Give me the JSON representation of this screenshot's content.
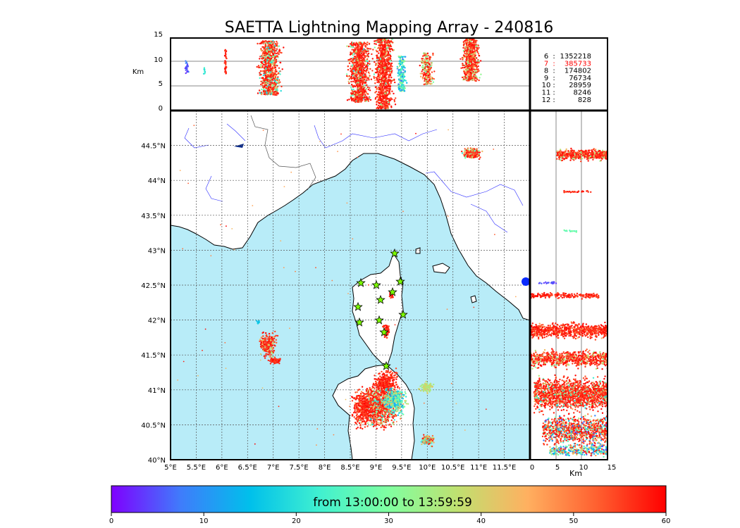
{
  "title": "SAETTA Lightning Mapping Array - 240816",
  "altitude_panel": {
    "unit": "Km",
    "ticks": [
      "15",
      "10",
      "5",
      "0"
    ],
    "stats": [
      {
        "label": "6",
        "value": "1352218",
        "color": "#000000"
      },
      {
        "label": "7",
        "value": "385733",
        "color": "#ff0000"
      },
      {
        "label": "8",
        "value": "174802",
        "color": "#000000"
      },
      {
        "label": "9",
        "value": "76734",
        "color": "#000000"
      },
      {
        "label": "10",
        "value": "28959",
        "color": "#000000"
      },
      {
        "label": "11",
        "value": "8246",
        "color": "#000000"
      },
      {
        "label": "12",
        "value": "828",
        "color": "#000000"
      }
    ]
  },
  "map": {
    "lon_labels": [
      "5°E",
      "5.5°E",
      "6°E",
      "6.5°E",
      "7°E",
      "7.5°E",
      "8°E",
      "8.5°E",
      "9°E",
      "9.5°E",
      "10°E",
      "10.5°E",
      "11°E",
      "11.5°E"
    ],
    "lat_labels": [
      "44.5°N",
      "44°N",
      "43.5°N",
      "43°N",
      "42.5°N",
      "42°N",
      "41.5°N",
      "41°N",
      "40.5°N",
      "40°N"
    ],
    "sea_color": "#b8ecf8",
    "land_color": "#ffffff",
    "station_icon": "star-icon",
    "station_color": "#7cfc00"
  },
  "side_panel": {
    "unit": "Km",
    "ticks": [
      "0",
      "5",
      "10",
      "15"
    ]
  },
  "colorbar": {
    "label": "from 13:00:00 to 13:59:59",
    "ticks": [
      "0",
      "10",
      "20",
      "30",
      "40",
      "50",
      "60"
    ],
    "colors": [
      "#7f00ff",
      "#3f7cfb",
      "#00c0eb",
      "#40f0d0",
      "#80ffa0",
      "#c0e070",
      "#ffb060",
      "#ff6030",
      "#ff0000"
    ]
  }
}
